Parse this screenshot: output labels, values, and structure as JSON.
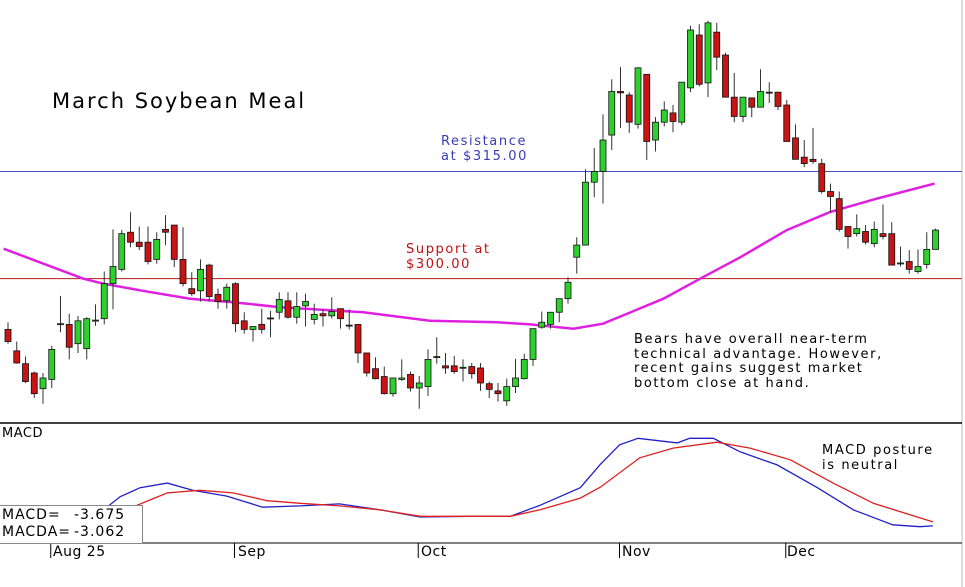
{
  "chart_data": [
    {
      "type": "candlestick",
      "title": "March Soybean Meal",
      "x_unit": "trading session",
      "ylim": [
        279.8,
        339.0
      ],
      "x_tick_labels": [
        {
          "bar": 6,
          "label": "Aug 25"
        },
        {
          "bar": 27,
          "label": "Sep"
        },
        {
          "bar": 48,
          "label": "Oct"
        },
        {
          "bar": 71,
          "label": "Nov"
        },
        {
          "bar": 90,
          "label": "Dec"
        }
      ],
      "ohlc_fields": [
        "open",
        "high",
        "low",
        "close"
      ],
      "candles": [
        [
          292.9,
          293.9,
          290.9,
          291.2
        ],
        [
          289.9,
          291.2,
          288.1,
          288.2
        ],
        [
          288.1,
          289.1,
          285.4,
          285.6
        ],
        [
          286.8,
          287.0,
          283.3,
          283.9
        ],
        [
          284.6,
          286.8,
          282.5,
          286.1
        ],
        [
          285.9,
          290.6,
          284.7,
          290.1
        ],
        [
          293.6,
          297.6,
          292.5,
          293.7
        ],
        [
          293.6,
          295.1,
          288.7,
          290.4
        ],
        [
          290.9,
          294.8,
          289.6,
          294.1
        ],
        [
          290.2,
          294.6,
          288.7,
          294.4
        ],
        [
          294.1,
          296.4,
          293.4,
          294.2
        ],
        [
          294.4,
          301.0,
          293.6,
          299.3
        ],
        [
          299.3,
          306.9,
          295.7,
          301.7
        ],
        [
          301.3,
          306.8,
          301.0,
          306.3
        ],
        [
          306.5,
          309.3,
          304.4,
          305.1
        ],
        [
          305.1,
          307.3,
          304.0,
          304.5
        ],
        [
          305.1,
          307.3,
          302.0,
          302.4
        ],
        [
          302.7,
          306.5,
          302.1,
          305.5
        ],
        [
          306.9,
          308.9,
          304.7,
          306.5
        ],
        [
          307.5,
          307.5,
          301.6,
          302.7
        ],
        [
          302.7,
          307.2,
          298.9,
          299.3
        ],
        [
          298.6,
          300.9,
          297.6,
          297.9
        ],
        [
          298.3,
          302.7,
          296.8,
          301.3
        ],
        [
          301.9,
          302.1,
          296.8,
          297.5
        ],
        [
          297.8,
          298.6,
          295.8,
          296.8
        ],
        [
          296.9,
          299.3,
          295.8,
          298.8
        ],
        [
          299.3,
          299.5,
          292.5,
          293.7
        ],
        [
          294.1,
          295.3,
          292.3,
          292.9
        ],
        [
          292.9,
          293.3,
          291.2,
          293.3
        ],
        [
          293.6,
          295.8,
          292.3,
          292.9
        ],
        [
          294.5,
          295.5,
          291.8,
          294.4
        ],
        [
          295.3,
          298.1,
          294.3,
          297.1
        ],
        [
          296.9,
          298.1,
          294.4,
          294.6
        ],
        [
          294.6,
          298.1,
          293.7,
          296.1
        ],
        [
          296.2,
          297.9,
          293.3,
          296.8
        ],
        [
          294.3,
          296.5,
          293.6,
          295.0
        ],
        [
          295.1,
          295.7,
          293.3,
          294.8
        ],
        [
          294.8,
          297.4,
          294.4,
          295.4
        ],
        [
          295.8,
          295.8,
          293.0,
          294.4
        ],
        [
          293.5,
          295.7,
          292.9,
          293.4
        ],
        [
          293.6,
          293.6,
          288.2,
          289.6
        ],
        [
          289.6,
          289.6,
          286.3,
          286.8
        ],
        [
          287.4,
          289.0,
          285.9,
          286.0
        ],
        [
          286.3,
          287.7,
          283.8,
          283.9
        ],
        [
          283.9,
          286.1,
          283.5,
          286.1
        ],
        [
          285.9,
          288.7,
          285.7,
          286.1
        ],
        [
          286.6,
          287.0,
          284.2,
          284.7
        ],
        [
          284.7,
          286.4,
          281.8,
          285.4
        ],
        [
          284.9,
          290.1,
          283.6,
          288.7
        ],
        [
          289.0,
          291.8,
          288.1,
          289.1
        ],
        [
          287.8,
          289.6,
          286.7,
          287.5
        ],
        [
          287.8,
          289.2,
          286.7,
          287.0
        ],
        [
          287.5,
          288.7,
          285.6,
          287.6
        ],
        [
          287.7,
          288.2,
          286.0,
          286.7
        ],
        [
          287.5,
          288.2,
          284.3,
          285.4
        ],
        [
          285.3,
          285.6,
          283.3,
          284.5
        ],
        [
          284.3,
          285.4,
          282.8,
          283.9
        ],
        [
          282.9,
          286.0,
          282.2,
          284.9
        ],
        [
          284.9,
          288.8,
          284.0,
          286.1
        ],
        [
          286.0,
          289.5,
          285.9,
          288.7
        ],
        [
          288.7,
          293.0,
          287.8,
          293.0
        ],
        [
          293.2,
          295.4,
          293.0,
          293.9
        ],
        [
          293.6,
          295.3,
          293.0,
          295.3
        ],
        [
          295.3,
          297.2,
          293.9,
          297.2
        ],
        [
          297.2,
          300.2,
          296.5,
          299.5
        ],
        [
          303.0,
          305.8,
          300.7,
          304.7
        ],
        [
          304.7,
          315.3,
          304.7,
          313.5
        ],
        [
          313.5,
          318.3,
          311.4,
          315.0
        ],
        [
          315.0,
          323.0,
          310.5,
          319.4
        ],
        [
          320.1,
          327.9,
          318.0,
          326.2
        ],
        [
          326.2,
          329.6,
          321.1,
          326.0
        ],
        [
          325.7,
          326.1,
          320.4,
          321.9
        ],
        [
          321.6,
          329.6,
          321.0,
          329.5
        ],
        [
          328.6,
          328.6,
          316.6,
          319.2
        ],
        [
          319.4,
          322.6,
          317.8,
          321.9
        ],
        [
          321.9,
          324.8,
          321.3,
          323.6
        ],
        [
          323.2,
          324.3,
          320.5,
          322.0
        ],
        [
          321.9,
          327.5,
          321.5,
          327.5
        ],
        [
          326.7,
          335.4,
          326.1,
          334.8
        ],
        [
          334.1,
          335.6,
          326.9,
          327.2
        ],
        [
          327.4,
          336.1,
          325.4,
          335.8
        ],
        [
          334.5,
          335.8,
          329.2,
          331.0
        ],
        [
          331.3,
          331.6,
          325.4,
          325.4
        ],
        [
          325.4,
          328.8,
          321.9,
          322.7
        ],
        [
          322.7,
          325.4,
          321.9,
          325.4
        ],
        [
          325.3,
          325.3,
          322.6,
          324.0
        ],
        [
          324.0,
          329.3,
          324.0,
          326.2
        ],
        [
          326.1,
          327.5,
          324.6,
          326.0
        ],
        [
          326.1,
          326.1,
          323.6,
          324.1
        ],
        [
          324.3,
          325.0,
          319.2,
          319.2
        ],
        [
          319.7,
          321.6,
          316.7,
          316.7
        ],
        [
          317.0,
          319.4,
          315.6,
          316.1
        ],
        [
          316.7,
          321.1,
          316.1,
          316.4
        ],
        [
          316.1,
          316.8,
          311.9,
          312.2
        ],
        [
          312.2,
          313.3,
          309.3,
          311.5
        ],
        [
          311.2,
          312.2,
          306.6,
          306.9
        ],
        [
          307.3,
          307.3,
          304.2,
          305.9
        ],
        [
          306.3,
          309.0,
          305.9,
          307.0
        ],
        [
          306.6,
          307.5,
          304.8,
          305.1
        ],
        [
          304.9,
          308.0,
          304.4,
          306.9
        ],
        [
          306.3,
          310.4,
          305.5,
          305.9
        ],
        [
          306.3,
          307.9,
          301.9,
          301.9
        ],
        [
          302.1,
          304.5,
          301.7,
          302.2
        ],
        [
          302.4,
          304.0,
          300.7,
          301.3
        ],
        [
          301.0,
          304.1,
          300.7,
          301.7
        ],
        [
          302.0,
          306.5,
          301.4,
          304.1
        ],
        [
          304.1,
          307.0,
          304.1,
          306.8
        ]
      ],
      "moving_average": [
        [
          0.5,
          304.2
        ],
        [
          9.6,
          300.0
        ],
        [
          11.9,
          299.3
        ],
        [
          16.4,
          298.3
        ],
        [
          21.8,
          297.2
        ],
        [
          26.7,
          296.7
        ],
        [
          32.1,
          296.0
        ],
        [
          41.6,
          295.3
        ],
        [
          49.2,
          294.1
        ],
        [
          56.9,
          293.9
        ],
        [
          60.7,
          293.6
        ],
        [
          65.6,
          293.0
        ],
        [
          69.0,
          293.7
        ],
        [
          75.9,
          297.2
        ],
        [
          80.1,
          300.0
        ],
        [
          84.7,
          303.0
        ],
        [
          90.0,
          306.8
        ],
        [
          94.9,
          309.3
        ],
        [
          100.3,
          311.2
        ],
        [
          106.9,
          313.3
        ]
      ],
      "horizontal_lines": [
        {
          "value": 315.0,
          "label": "Resistance\nat $315.00",
          "color": "#4a4ec0"
        },
        {
          "value": 300.0,
          "label": "Support at\n$300.00",
          "color": "#b81818"
        }
      ],
      "annotation": "Bears have overall near-term\ntechnical advantage. However,\nrecent gains suggest market\nbottom close at hand.",
      "colors": {
        "up": "#2ed02e",
        "down": "#c81414",
        "moving_average": "#e020e0"
      }
    },
    {
      "type": "line",
      "label": "MACD",
      "series": [
        {
          "name": "MACD",
          "color": "#2020c8",
          "points": [
            [
              12.3,
              -0.8
            ],
            [
              13.8,
              0.8
            ],
            [
              16.1,
              2.2
            ],
            [
              19.2,
              2.9
            ],
            [
              22.1,
              1.8
            ],
            [
              26.0,
              0.9
            ],
            [
              30.1,
              -0.8
            ],
            [
              34.4,
              -0.6
            ],
            [
              38.9,
              -0.3
            ],
            [
              43.5,
              -1.2
            ],
            [
              48.1,
              -2.3
            ],
            [
              53.8,
              -2.2
            ],
            [
              58.4,
              -2.2
            ],
            [
              61.8,
              -0.5
            ],
            [
              66.4,
              2.2
            ],
            [
              68.7,
              5.8
            ],
            [
              70.9,
              8.8
            ],
            [
              73.0,
              9.8
            ],
            [
              77.5,
              9.1
            ],
            [
              78.9,
              9.8
            ],
            [
              81.6,
              9.8
            ],
            [
              84.7,
              7.7
            ],
            [
              88.9,
              5.7
            ],
            [
              93.5,
              2.2
            ],
            [
              97.6,
              -1.2
            ],
            [
              102.1,
              -3.5
            ],
            [
              105.2,
              -3.8
            ],
            [
              106.7,
              -3.675
            ]
          ]
        },
        {
          "name": "MACDA",
          "color": "#e02020",
          "points": [
            [
              13.2,
              -1.5
            ],
            [
              15.2,
              -0.8
            ],
            [
              19.2,
              1.4
            ],
            [
              22.9,
              1.8
            ],
            [
              26.7,
              1.4
            ],
            [
              30.6,
              0.2
            ],
            [
              34.4,
              -0.2
            ],
            [
              38.9,
              -0.6
            ],
            [
              43.5,
              -1.2
            ],
            [
              48.1,
              -2.2
            ],
            [
              53.8,
              -2.2
            ],
            [
              58.4,
              -2.2
            ],
            [
              61.8,
              -1.2
            ],
            [
              66.4,
              0.6
            ],
            [
              68.7,
              2.3
            ],
            [
              73.2,
              6.8
            ],
            [
              77.0,
              8.3
            ],
            [
              82.0,
              9.2
            ],
            [
              85.8,
              8.3
            ],
            [
              90.4,
              6.5
            ],
            [
              95.3,
              2.9
            ],
            [
              99.9,
              -0.2
            ],
            [
              106.7,
              -3.062
            ]
          ]
        }
      ],
      "readout": {
        "macd_label": "MACD=",
        "macd_value": "-3.675",
        "macda_label": "MACDA=",
        "macda_value": "-3.062"
      },
      "annotation": "MACD posture\nis neutral"
    }
  ]
}
